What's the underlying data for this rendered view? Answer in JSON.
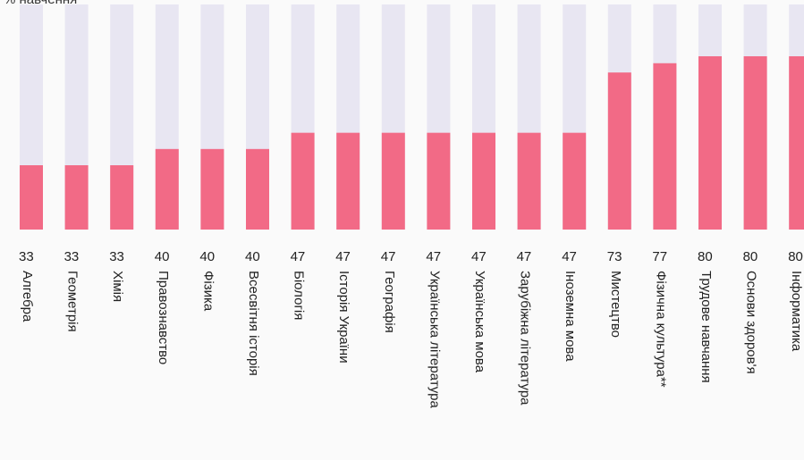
{
  "chart_data": {
    "type": "bar",
    "title": "% навчення",
    "xlabel": "",
    "ylabel": "",
    "ylim": [
      0,
      100
    ],
    "grid": false,
    "legend": "none",
    "colors": {
      "bar": "#f26a86",
      "track": "#e8e6f2"
    },
    "categories": [
      "Алгебра",
      "Геометрія",
      "Хімія",
      "Правознавство",
      "Фізика",
      "Всесвітня історія",
      "Біологія",
      "Історія України",
      "Географія",
      "Українська література",
      "Українська мова",
      "Зарубіжна література",
      "Іноземна мова",
      "Мистецтво",
      "Фізична культура**",
      "Трудове навчання",
      "Основи здоров'я",
      "Інформатика"
    ],
    "values": [
      33,
      33,
      33,
      40,
      40,
      40,
      47,
      47,
      47,
      47,
      47,
      47,
      47,
      73,
      77,
      80,
      80,
      80
    ],
    "value_labels": [
      "33",
      "33",
      "33",
      "40",
      "40",
      "40",
      "47",
      "47",
      "47",
      "47",
      "47",
      "47",
      "47",
      "73",
      "77",
      "80",
      "80",
      "80"
    ]
  }
}
